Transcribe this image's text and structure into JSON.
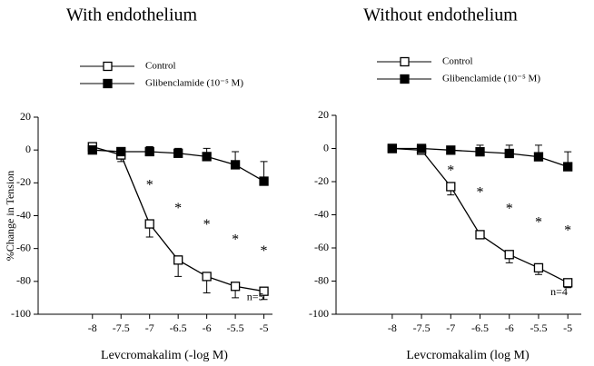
{
  "chart_data": [
    {
      "type": "line",
      "title": "With endothelium",
      "xlabel": "Levcromakalim (-log M)",
      "ylabel": "%Change in Tension",
      "x": [
        -8,
        -7.5,
        -7,
        -6.5,
        -6,
        -5.5,
        -5
      ],
      "series": [
        {
          "name": "Control",
          "color": "#000000",
          "marker": "open-square",
          "values": [
            2,
            -3,
            -45,
            -67,
            -77,
            -83,
            -86
          ],
          "errors": [
            1,
            4,
            8,
            10,
            10,
            7,
            5
          ]
        },
        {
          "name": "Glibenclamide (10⁻⁵ M)",
          "color": "#000000",
          "marker": "filled-square",
          "values": [
            0,
            -1,
            -1,
            -2,
            -4,
            -9,
            -19
          ],
          "errors": [
            0,
            1,
            3,
            3,
            5,
            8,
            12
          ]
        }
      ],
      "xlim": [
        -8.95,
        -4.85
      ],
      "xticks": [
        -8,
        -7.5,
        -7,
        -6.5,
        -6,
        -5.5,
        -5
      ],
      "ylim": [
        -100,
        20
      ],
      "yticks": [
        -100,
        -80,
        -60,
        -40,
        -20,
        0,
        20
      ],
      "annotations": [
        {
          "text": "*",
          "x": -7,
          "y": -22
        },
        {
          "text": "*",
          "x": -6.5,
          "y": -36
        },
        {
          "text": "*",
          "x": -6,
          "y": -46
        },
        {
          "text": "*",
          "x": -5.5,
          "y": -55
        },
        {
          "text": "*",
          "x": -5,
          "y": -62
        },
        {
          "text": "n=5",
          "x": -5.15,
          "y": -90
        }
      ]
    },
    {
      "type": "line",
      "title": "Without endothelium",
      "xlabel": "Levcromakalim (log M)",
      "x": [
        -8,
        -7.5,
        -7,
        -6.5,
        -6,
        -5.5,
        -5
      ],
      "series": [
        {
          "name": "Control",
          "color": "#000000",
          "marker": "open-square",
          "values": [
            0,
            -1,
            -23,
            -52,
            -64,
            -72,
            -81
          ],
          "errors": [
            0,
            2,
            5,
            2,
            5,
            4,
            3
          ]
        },
        {
          "name": "Glibenclamide (10⁻⁵ M)",
          "color": "#000000",
          "marker": "filled-square",
          "values": [
            0,
            0,
            -1,
            -2,
            -3,
            -5,
            -11
          ],
          "errors": [
            0,
            1,
            2,
            4,
            5,
            7,
            9
          ]
        }
      ],
      "xlim": [
        -8.96,
        -4.77
      ],
      "xticks": [
        -8,
        -7.5,
        -7,
        -6.5,
        -6,
        -5.5,
        -5
      ],
      "ylim": [
        -100,
        20
      ],
      "yticks": [
        -100,
        -80,
        -60,
        -40,
        -20,
        0,
        20
      ],
      "annotations": [
        {
          "text": "*",
          "x": -7,
          "y": -14
        },
        {
          "text": "*",
          "x": -6.5,
          "y": -27
        },
        {
          "text": "*",
          "x": -6,
          "y": -37
        },
        {
          "text": "*",
          "x": -5.5,
          "y": -45
        },
        {
          "text": "*",
          "x": -5,
          "y": -50
        },
        {
          "text": "n=4",
          "x": -5.15,
          "y": -87
        }
      ]
    }
  ]
}
